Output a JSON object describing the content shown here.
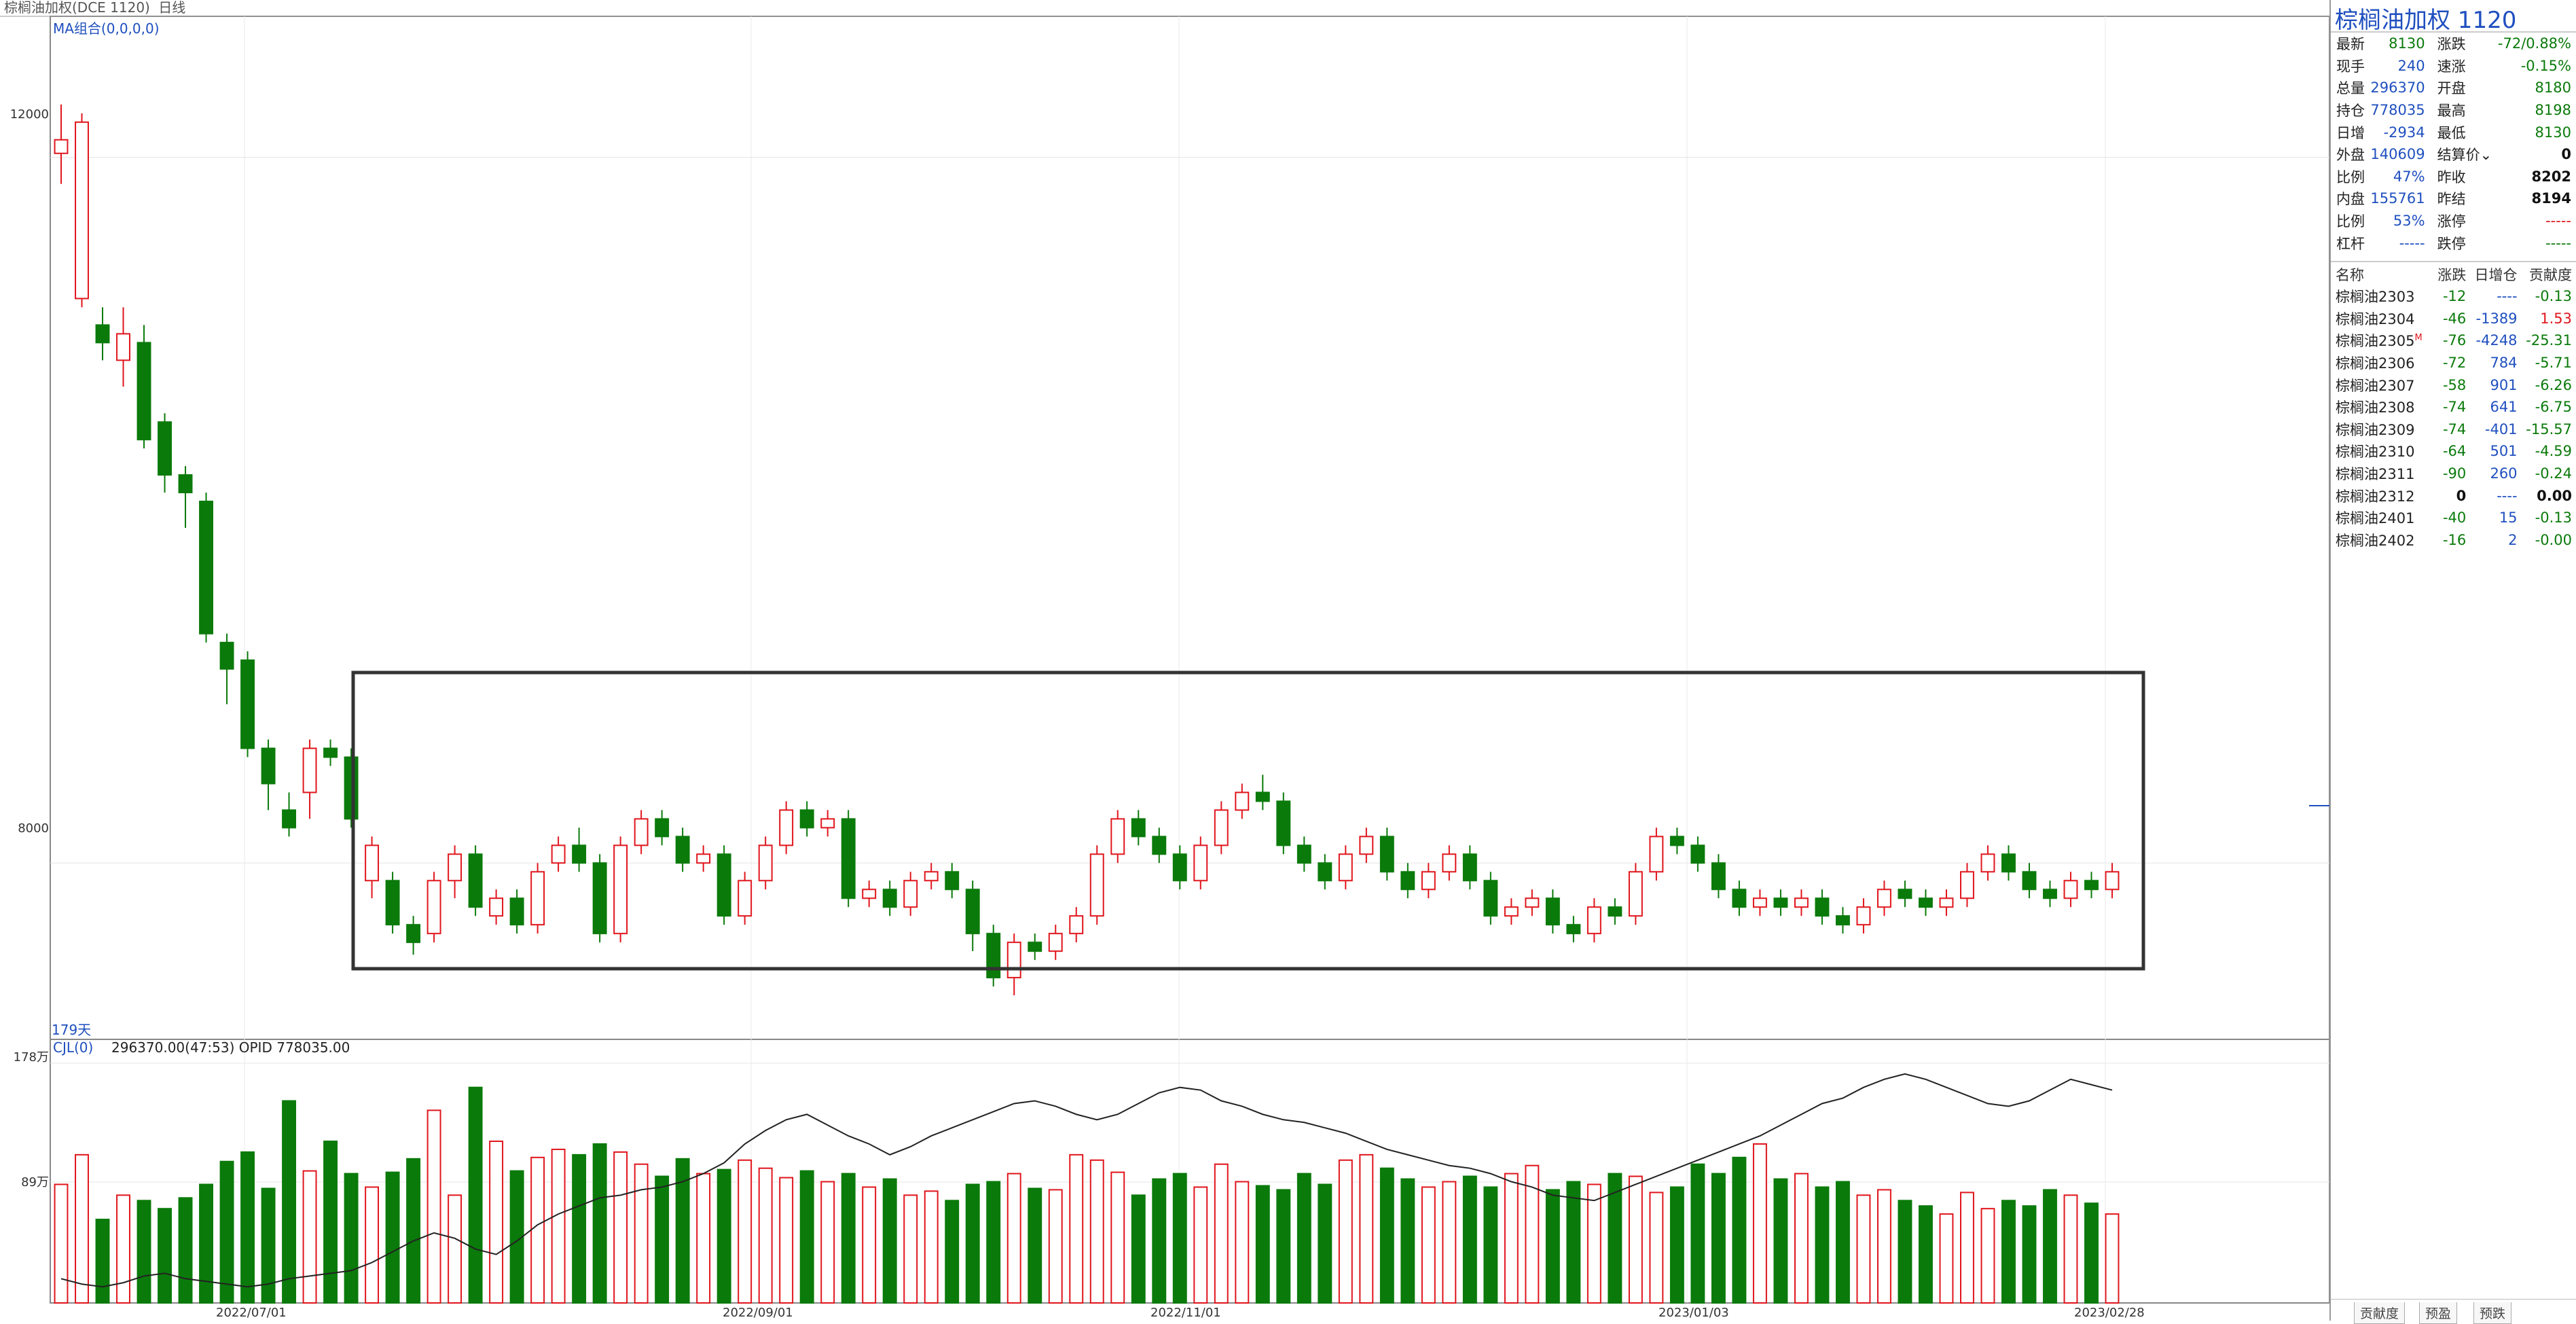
{
  "topbar": {
    "title": "棕榈油加权(DCE 1120)",
    "period": "日线"
  },
  "ma_label": "MA组合(0,0,0,0)",
  "days_label": "179天",
  "cjl": {
    "label": "CJL(0)",
    "values": "296370.00(47:53)  OPID 778035.00"
  },
  "yaxis": {
    "top_tick": "12000",
    "mid_tick": "8000",
    "vol_top": "178万",
    "vol_mid": "89万"
  },
  "xaxis": [
    "2022/07/01",
    "2022/09/01",
    "2022/11/01",
    "2023/01/03",
    "2023/02/28"
  ],
  "side": {
    "title": "棕榈油加权  1120",
    "quote_rows": [
      {
        "l1": "最新",
        "v1": "8130",
        "c1": "green",
        "l2": "涨跌",
        "v2": "-72/0.88%",
        "c2": "green"
      },
      {
        "l1": "现手",
        "v1": "240",
        "c1": "blue",
        "l2": "速涨",
        "v2": "-0.15%",
        "c2": "green"
      },
      {
        "l1": "总量",
        "v1": "296370",
        "c1": "blue",
        "l2": "开盘",
        "v2": "8180",
        "c2": "green"
      },
      {
        "l1": "持仓",
        "v1": "778035",
        "c1": "blue",
        "l2": "最高",
        "v2": "8198",
        "c2": "green"
      },
      {
        "l1": "日增",
        "v1": "-2934",
        "c1": "blue",
        "l2": "最低",
        "v2": "8130",
        "c2": "green"
      },
      {
        "l1": "外盘",
        "v1": "140609",
        "c1": "blue",
        "l2": "结算价⌄",
        "v2": "0",
        "c2": "black"
      },
      {
        "l1": "比例",
        "v1": "47%",
        "c1": "blue",
        "l2": "昨收",
        "v2": "8202",
        "c2": "black"
      },
      {
        "l1": "内盘",
        "v1": "155761",
        "c1": "blue",
        "l2": "昨结",
        "v2": "8194",
        "c2": "black"
      },
      {
        "l1": "比例",
        "v1": "53%",
        "c1": "blue",
        "l2": "涨停",
        "v2": "-----",
        "c2": "red"
      },
      {
        "l1": "杠杆",
        "v1": "-----",
        "c1": "blue",
        "l2": "跌停",
        "v2": "-----",
        "c2": "green"
      }
    ],
    "contract_header": [
      "名称",
      "涨跌",
      "日增仓",
      "贡献度"
    ],
    "contracts": [
      {
        "name": "棕榈油2303",
        "mark": "",
        "chg": "-12",
        "chg_c": "green",
        "inc": "----",
        "inc_c": "blue",
        "con": "-0.13",
        "con_c": "green"
      },
      {
        "name": "棕榈油2304",
        "mark": "",
        "chg": "-46",
        "chg_c": "green",
        "inc": "-1389",
        "inc_c": "blue",
        "con": "1.53",
        "con_c": "red"
      },
      {
        "name": "棕榈油2305",
        "mark": "M",
        "chg": "-76",
        "chg_c": "green",
        "inc": "-4248",
        "inc_c": "blue",
        "con": "-25.31",
        "con_c": "green"
      },
      {
        "name": "棕榈油2306",
        "mark": "",
        "chg": "-72",
        "chg_c": "green",
        "inc": "784",
        "inc_c": "blue",
        "con": "-5.71",
        "con_c": "green"
      },
      {
        "name": "棕榈油2307",
        "mark": "",
        "chg": "-58",
        "chg_c": "green",
        "inc": "901",
        "inc_c": "blue",
        "con": "-6.26",
        "con_c": "green"
      },
      {
        "name": "棕榈油2308",
        "mark": "",
        "chg": "-74",
        "chg_c": "green",
        "inc": "641",
        "inc_c": "blue",
        "con": "-6.75",
        "con_c": "green"
      },
      {
        "name": "棕榈油2309",
        "mark": "",
        "chg": "-74",
        "chg_c": "green",
        "inc": "-401",
        "inc_c": "blue",
        "con": "-15.57",
        "con_c": "green"
      },
      {
        "name": "棕榈油2310",
        "mark": "",
        "chg": "-64",
        "chg_c": "green",
        "inc": "501",
        "inc_c": "blue",
        "con": "-4.59",
        "con_c": "green"
      },
      {
        "name": "棕榈油2311",
        "mark": "",
        "chg": "-90",
        "chg_c": "green",
        "inc": "260",
        "inc_c": "blue",
        "con": "-0.24",
        "con_c": "green"
      },
      {
        "name": "棕榈油2312",
        "mark": "",
        "chg": "0",
        "chg_c": "black",
        "inc": "----",
        "inc_c": "blue",
        "con": "0.00",
        "con_c": "black"
      },
      {
        "name": "棕榈油2401",
        "mark": "",
        "chg": "-40",
        "chg_c": "green",
        "inc": "15",
        "inc_c": "blue",
        "con": "-0.13",
        "con_c": "green"
      },
      {
        "name": "棕榈油2402",
        "mark": "",
        "chg": "-16",
        "chg_c": "green",
        "inc": "2",
        "inc_c": "blue",
        "con": "-0.00",
        "con_c": "green"
      }
    ],
    "tabs": [
      "贡献度",
      "预盈",
      "预跌"
    ]
  },
  "colors": {
    "up": "#e0151c",
    "down": "#0a7a0a",
    "accent": "#1f4fbf"
  },
  "chart_data": {
    "type": "candlestick",
    "x_start": "2022/06/17",
    "ylim": [
      7000,
      12800
    ],
    "price_ticks": [
      12000,
      8000
    ],
    "volume_ticks": [
      "178万",
      "89万"
    ],
    "candles": [
      [
        12023,
        12100,
        12300,
        11850
      ],
      [
        11200,
        12200,
        12250,
        11150
      ],
      [
        11050,
        10950,
        11150,
        10850
      ],
      [
        10850,
        11000,
        11150,
        10700
      ],
      [
        10950,
        10400,
        11050,
        10350
      ],
      [
        10500,
        10200,
        10550,
        10100
      ],
      [
        10200,
        10100,
        10250,
        9900
      ],
      [
        10050,
        9300,
        10100,
        9250
      ],
      [
        9250,
        9100,
        9300,
        8900
      ],
      [
        9150,
        8650,
        9200,
        8600
      ],
      [
        8650,
        8450,
        8700,
        8300
      ],
      [
        8300,
        8200,
        8400,
        8150
      ],
      [
        8400,
        8650,
        8700,
        8250
      ],
      [
        8650,
        8600,
        8700,
        8550
      ],
      [
        8600,
        8250,
        8650,
        8200
      ],
      [
        7900,
        8100,
        8150,
        7800
      ],
      [
        7900,
        7650,
        7950,
        7600
      ],
      [
        7650,
        7550,
        7700,
        7480
      ],
      [
        7600,
        7900,
        7950,
        7550
      ],
      [
        7900,
        8050,
        8100,
        7800
      ],
      [
        8050,
        7750,
        8100,
        7700
      ],
      [
        7700,
        7800,
        7850,
        7650
      ],
      [
        7800,
        7650,
        7850,
        7600
      ],
      [
        7650,
        7950,
        8000,
        7600
      ],
      [
        8000,
        8100,
        8150,
        7950
      ],
      [
        8100,
        8000,
        8200,
        7950
      ],
      [
        8000,
        7600,
        8050,
        7550
      ],
      [
        7600,
        8100,
        8150,
        7550
      ],
      [
        8100,
        8250,
        8300,
        8050
      ],
      [
        8250,
        8150,
        8300,
        8100
      ],
      [
        8150,
        8000,
        8200,
        7950
      ],
      [
        8000,
        8050,
        8100,
        7950
      ],
      [
        8050,
        7700,
        8100,
        7650
      ],
      [
        7700,
        7900,
        7950,
        7650
      ],
      [
        7900,
        8100,
        8150,
        7850
      ],
      [
        8100,
        8300,
        8350,
        8050
      ],
      [
        8300,
        8200,
        8350,
        8150
      ],
      [
        8200,
        8250,
        8300,
        8150
      ],
      [
        8250,
        7800,
        8300,
        7750
      ],
      [
        7800,
        7850,
        7900,
        7750
      ],
      [
        7850,
        7750,
        7900,
        7700
      ],
      [
        7750,
        7900,
        7950,
        7700
      ],
      [
        7900,
        7950,
        8000,
        7850
      ],
      [
        7950,
        7850,
        8000,
        7800
      ],
      [
        7850,
        7600,
        7900,
        7500
      ],
      [
        7600,
        7350,
        7650,
        7300
      ],
      [
        7350,
        7550,
        7600,
        7250
      ],
      [
        7550,
        7500,
        7600,
        7450
      ],
      [
        7500,
        7600,
        7650,
        7450
      ],
      [
        7600,
        7700,
        7750,
        7550
      ],
      [
        7700,
        8050,
        8100,
        7650
      ],
      [
        8050,
        8250,
        8300,
        8000
      ],
      [
        8250,
        8150,
        8300,
        8100
      ],
      [
        8150,
        8050,
        8200,
        8000
      ],
      [
        8050,
        7900,
        8100,
        7850
      ],
      [
        7900,
        8100,
        8150,
        7850
      ],
      [
        8100,
        8300,
        8350,
        8050
      ],
      [
        8300,
        8400,
        8450,
        8250
      ],
      [
        8400,
        8350,
        8500,
        8300
      ],
      [
        8350,
        8100,
        8400,
        8050
      ],
      [
        8100,
        8000,
        8150,
        7950
      ],
      [
        8000,
        7900,
        8050,
        7850
      ],
      [
        7900,
        8050,
        8100,
        7850
      ],
      [
        8050,
        8150,
        8200,
        8000
      ],
      [
        8150,
        7950,
        8200,
        7900
      ],
      [
        7950,
        7850,
        8000,
        7800
      ],
      [
        7850,
        7950,
        8000,
        7800
      ],
      [
        7950,
        8050,
        8100,
        7900
      ],
      [
        8050,
        7900,
        8100,
        7850
      ],
      [
        7900,
        7700,
        7950,
        7650
      ],
      [
        7700,
        7750,
        7800,
        7650
      ],
      [
        7750,
        7800,
        7850,
        7700
      ],
      [
        7800,
        7650,
        7850,
        7600
      ],
      [
        7650,
        7600,
        7700,
        7550
      ],
      [
        7600,
        7750,
        7800,
        7550
      ],
      [
        7750,
        7700,
        7800,
        7650
      ],
      [
        7700,
        7950,
        8000,
        7650
      ],
      [
        7950,
        8150,
        8200,
        7900
      ],
      [
        8150,
        8100,
        8200,
        8050
      ],
      [
        8100,
        8000,
        8150,
        7950
      ],
      [
        8000,
        7850,
        8050,
        7800
      ],
      [
        7850,
        7750,
        7900,
        7700
      ],
      [
        7750,
        7800,
        7850,
        7700
      ],
      [
        7800,
        7750,
        7850,
        7700
      ],
      [
        7750,
        7800,
        7850,
        7700
      ],
      [
        7800,
        7700,
        7850,
        7650
      ],
      [
        7700,
        7650,
        7750,
        7600
      ],
      [
        7650,
        7750,
        7800,
        7600
      ],
      [
        7750,
        7850,
        7900,
        7700
      ],
      [
        7850,
        7800,
        7900,
        7750
      ],
      [
        7800,
        7750,
        7850,
        7700
      ],
      [
        7750,
        7800,
        7850,
        7700
      ],
      [
        7800,
        7950,
        8000,
        7750
      ],
      [
        7950,
        8050,
        8100,
        7900
      ],
      [
        8050,
        7950,
        8100,
        7900
      ],
      [
        7950,
        7850,
        8000,
        7800
      ],
      [
        7850,
        7800,
        7900,
        7750
      ],
      [
        7800,
        7900,
        7950,
        7750
      ],
      [
        7900,
        7850,
        7950,
        7800
      ],
      [
        7850,
        7950,
        8000,
        7800
      ]
    ],
    "volume": [
      88,
      110,
      62,
      80,
      76,
      70,
      78,
      88,
      105,
      112,
      85,
      150,
      98,
      120,
      96,
      86,
      97,
      107,
      143,
      80,
      160,
      120,
      98,
      108,
      114,
      110,
      118,
      112,
      103,
      94,
      107,
      96,
      99,
      106,
      100,
      93,
      98,
      90,
      96,
      86,
      92,
      80,
      83,
      76,
      88,
      90,
      96,
      85,
      84,
      110,
      106,
      97,
      80,
      92,
      96,
      86,
      103,
      90,
      87,
      84,
      96,
      88,
      106,
      110,
      100,
      92,
      86,
      90,
      94,
      86,
      96,
      102,
      84,
      90,
      88,
      96,
      94,
      82,
      86,
      103,
      96,
      108,
      118,
      92,
      96,
      86,
      90,
      80,
      84,
      76,
      72,
      66,
      82,
      70,
      76,
      72,
      84,
      80,
      74,
      66
    ],
    "opid": [
      18,
      14,
      12,
      15,
      20,
      22,
      18,
      16,
      14,
      12,
      14,
      18,
      20,
      22,
      24,
      30,
      38,
      46,
      52,
      48,
      40,
      36,
      46,
      58,
      66,
      72,
      78,
      80,
      84,
      86,
      90,
      96,
      104,
      118,
      128,
      136,
      140,
      132,
      124,
      118,
      110,
      116,
      124,
      130,
      136,
      142,
      148,
      150,
      146,
      140,
      136,
      140,
      148,
      156,
      160,
      158,
      150,
      146,
      140,
      136,
      134,
      130,
      126,
      120,
      114,
      110,
      106,
      102,
      100,
      96,
      90,
      86,
      80,
      78,
      76,
      82,
      88,
      94,
      100,
      106,
      112,
      118,
      124,
      132,
      140,
      148,
      152,
      160,
      166,
      170,
      166,
      160,
      154,
      148,
      146,
      150,
      158,
      166,
      162,
      158
    ]
  }
}
